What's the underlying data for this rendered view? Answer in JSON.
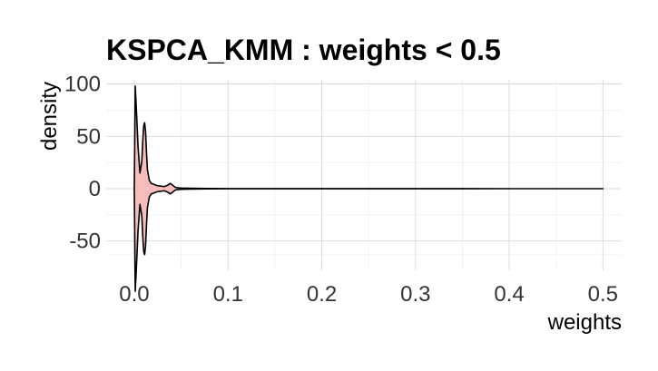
{
  "chart_data": {
    "type": "violin",
    "title": "KSPCA_KMM : weights < 0.5",
    "xlabel": "weights",
    "ylabel": "density",
    "xlim": [
      -0.03,
      0.52
    ],
    "ylim": [
      -78,
      104
    ],
    "x_ticks": [
      0.0,
      0.1,
      0.2,
      0.3,
      0.4,
      0.5
    ],
    "x_tick_labels": [
      "0.0",
      "0.1",
      "0.2",
      "0.3",
      "0.4",
      "0.5"
    ],
    "y_ticks": [
      100,
      50,
      0,
      -50
    ],
    "y_tick_labels": [
      "100",
      "50",
      "0",
      "-50"
    ],
    "grid": true,
    "fill_color": "#f8bcbc",
    "fill_range": [
      0.0,
      0.045
    ],
    "line_color": "#000000",
    "density_profile": {
      "x": [
        0.0,
        0.001,
        0.002,
        0.004,
        0.006,
        0.008,
        0.009,
        0.01,
        0.011,
        0.012,
        0.013,
        0.014,
        0.016,
        0.018,
        0.02,
        0.024,
        0.028,
        0.032,
        0.036,
        0.038,
        0.04,
        0.042,
        0.044,
        0.047,
        0.05,
        0.06,
        0.08,
        0.1,
        0.2,
        0.3,
        0.4,
        0.5
      ],
      "half_width": [
        0,
        98,
        80,
        40,
        15,
        26,
        45,
        60,
        63,
        55,
        35,
        18,
        8,
        5,
        4.5,
        3,
        2.5,
        2,
        3.5,
        5,
        4,
        2.5,
        1.2,
        0.8,
        0.6,
        0.4,
        0.2,
        0.1,
        0.03,
        0.02,
        0.01,
        0
      ]
    }
  }
}
